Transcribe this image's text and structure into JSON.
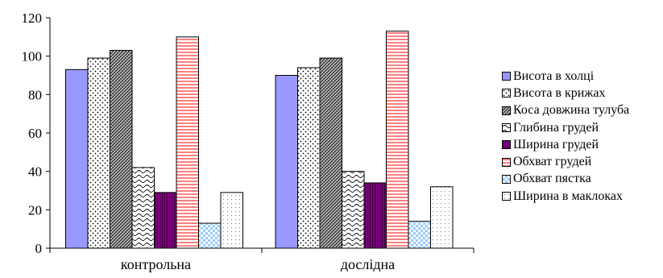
{
  "chart_data": {
    "type": "bar",
    "title": "",
    "xlabel": "",
    "ylabel": "",
    "categories": [
      "контрольна",
      "дослідна"
    ],
    "ylim": [
      0,
      120
    ],
    "yticks": [
      0,
      20,
      40,
      60,
      80,
      100,
      120
    ],
    "grid": false,
    "legend_position": "right",
    "series": [
      {
        "name": "Висота в холці",
        "values": [
          93,
          90
        ],
        "color": "#9999ff",
        "pattern": "solid"
      },
      {
        "name": "Висота в крижах",
        "values": [
          99,
          94
        ],
        "color": "#ffffff",
        "pattern": "dots"
      },
      {
        "name": "Коса довжина тулуба",
        "values": [
          103,
          99
        ],
        "color": "#c0c0c0",
        "pattern": "crosshatch"
      },
      {
        "name": "Глибина грудей",
        "values": [
          42,
          40
        ],
        "color": "#ffffff",
        "pattern": "wave"
      },
      {
        "name": "Ширина грудей",
        "values": [
          29,
          34
        ],
        "color": "#800080",
        "pattern": "vertical"
      },
      {
        "name": "Обхват грудей",
        "values": [
          110,
          113
        ],
        "color": "#ff8080",
        "pattern": "horizontal"
      },
      {
        "name": "Обхват пястка",
        "values": [
          13,
          14
        ],
        "color": "#99ccff",
        "pattern": "checker"
      },
      {
        "name": "Ширина в маклоках",
        "values": [
          29,
          32
        ],
        "color": "#ffffff",
        "pattern": "sparse"
      }
    ]
  }
}
